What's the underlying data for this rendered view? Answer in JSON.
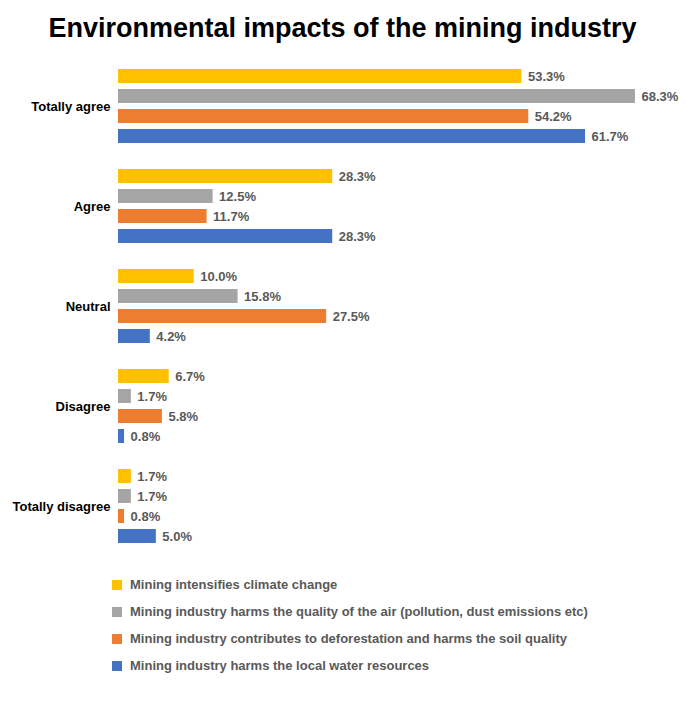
{
  "chart_data": {
    "type": "bar",
    "title": "Environmental impacts of the mining industry",
    "orientation": "horizontal",
    "data_labels": true,
    "tick_labels": "y",
    "grid": false,
    "categories": [
      "Totally agree",
      "Agree",
      "Neutral",
      "Disagree",
      "Totally disagree"
    ],
    "series": [
      {
        "name": "Mining intensifies climate change",
        "color": "#FFC000",
        "values": [
          53.3,
          28.3,
          10.0,
          6.7,
          1.7
        ],
        "value_labels": [
          "53.3%",
          "28.3%",
          "10.0%",
          "6.7%",
          "1.7%"
        ]
      },
      {
        "name": "Mining industry harms the quality of the air (pollution, dust emissions etc)",
        "color": "#A5A5A5",
        "values": [
          68.3,
          12.5,
          15.8,
          1.7,
          1.7
        ],
        "value_labels": [
          "68.3%",
          "12.5%",
          "15.8%",
          "1.7%",
          "1.7%"
        ]
      },
      {
        "name": "Mining industry contributes to deforestation and harms the soil quality",
        "color": "#ED7D31",
        "values": [
          54.2,
          11.7,
          27.5,
          5.8,
          0.8
        ],
        "value_labels": [
          "54.2%",
          "11.7%",
          "27.5%",
          "5.8%",
          "0.8%"
        ]
      },
      {
        "name": "Mining industry harms the local water resources",
        "color": "#4472C4",
        "values": [
          61.7,
          28.3,
          4.2,
          0.8,
          5.0
        ],
        "value_labels": [
          "61.7%",
          "28.3%",
          "4.2%",
          "0.8%",
          "5.0%"
        ]
      }
    ]
  }
}
